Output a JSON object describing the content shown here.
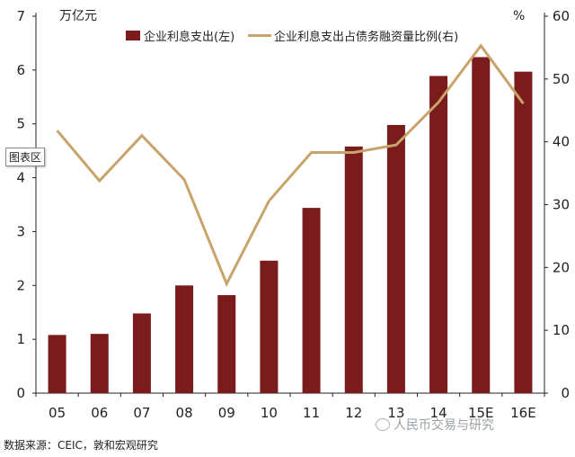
{
  "chart_data": {
    "type": "bar+line",
    "categories": [
      "05",
      "06",
      "07",
      "08",
      "09",
      "10",
      "11",
      "12",
      "13",
      "14",
      "15E",
      "16E"
    ],
    "series": [
      {
        "name": "企业利息支出(左)",
        "type": "bar",
        "axis": "left",
        "color": "#7b1c1c",
        "values": [
          1.08,
          1.1,
          1.48,
          2.0,
          1.82,
          2.46,
          3.44,
          4.58,
          4.98,
          5.89,
          6.24,
          5.97
        ]
      },
      {
        "name": "企业利息支出占债务融资量比例(右)",
        "type": "line",
        "axis": "right",
        "color": "#c8a46a",
        "values": [
          41.8,
          33.8,
          41.0,
          34.0,
          17.4,
          30.6,
          38.3,
          38.3,
          39.5,
          46.3,
          55.3,
          46.1
        ]
      }
    ],
    "y_left": {
      "label": "万亿元",
      "ylim": [
        0,
        7
      ],
      "ticks": [
        "0",
        "1",
        "2",
        "3",
        "4",
        "5",
        "6",
        "7"
      ]
    },
    "y_right": {
      "label": "%",
      "ylim": [
        0,
        60
      ],
      "ticks": [
        "0",
        "10",
        "20",
        "30",
        "40",
        "50",
        "60"
      ]
    },
    "legend": "top",
    "grid": false
  },
  "source": "数据来源：CEIC，敦和宏观研究",
  "watermark": "人民币交易与研究",
  "chart_area_tag": "图表区"
}
